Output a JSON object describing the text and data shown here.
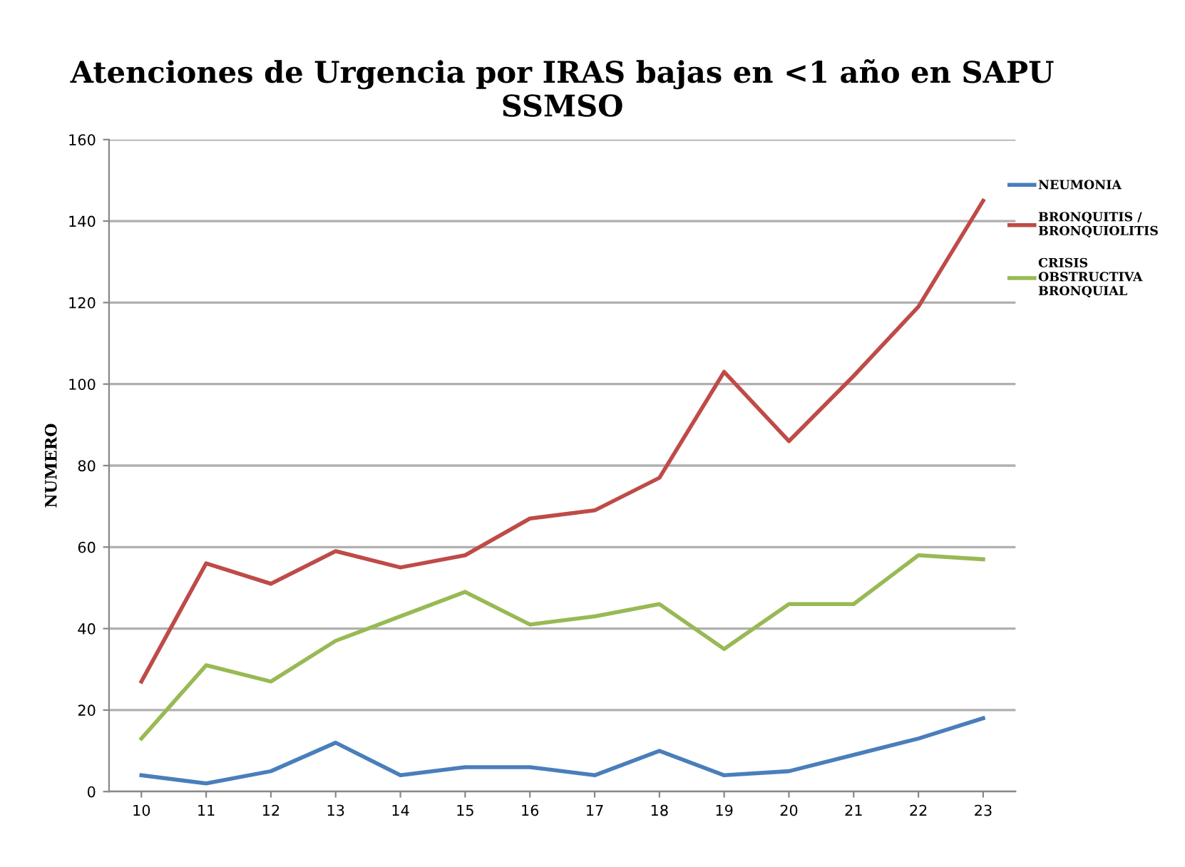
{
  "chart_data": {
    "type": "line",
    "title": "Atenciones de Urgencia por IRAS bajas en <1 año en SAPU SSMSO",
    "ylabel": "NUMERO",
    "categories": [
      "10",
      "11",
      "12",
      "13",
      "14",
      "15",
      "16",
      "17",
      "18",
      "19",
      "20",
      "21",
      "22",
      "23"
    ],
    "series": [
      {
        "name": "NEUMONIA",
        "color": "#4a7ebb",
        "values": [
          4,
          2,
          5,
          12,
          4,
          6,
          6,
          4,
          10,
          4,
          5,
          9,
          13,
          18
        ]
      },
      {
        "name": "BRONQUITIS / BRONQUIOLITIS",
        "color": "#be4b48",
        "values": [
          27,
          56,
          51,
          59,
          55,
          58,
          67,
          69,
          77,
          103,
          86,
          102,
          119,
          145
        ]
      },
      {
        "name": "CRISIS OBSTRUCTIVA BRONQUIAL",
        "color": "#98b954",
        "values": [
          13,
          31,
          27,
          37,
          43,
          49,
          41,
          43,
          46,
          35,
          46,
          46,
          58,
          57
        ]
      }
    ],
    "ylim": [
      0,
      160
    ],
    "yticks": [
      0,
      20,
      40,
      60,
      80,
      100,
      120,
      140,
      160
    ],
    "grid": "y",
    "legend": "right",
    "marker": "none",
    "line_style": "solid"
  }
}
